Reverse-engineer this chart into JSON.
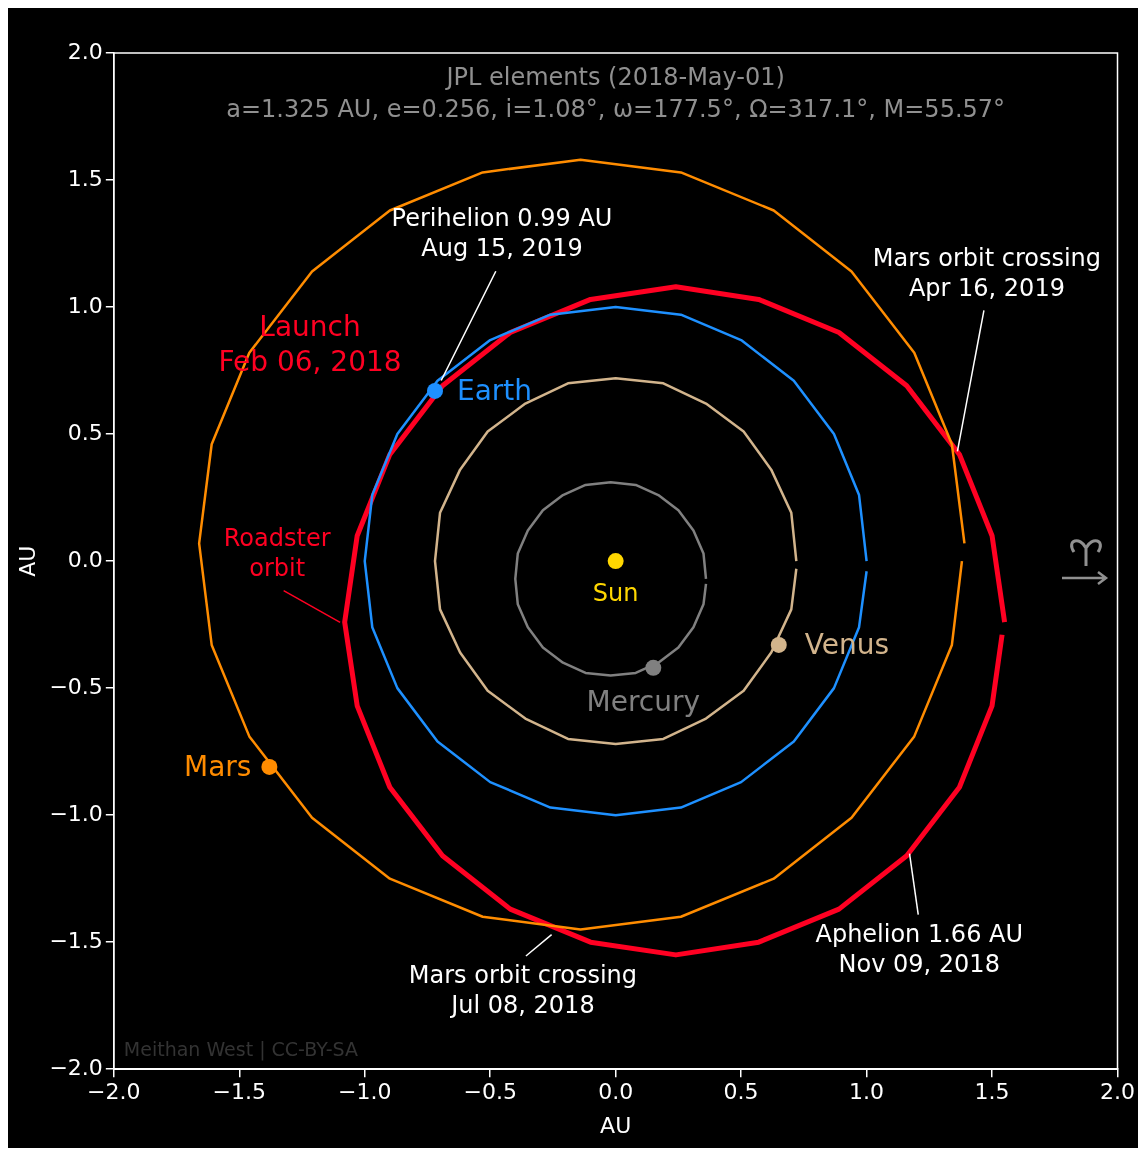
{
  "chart_data": {
    "type": "line",
    "title": "JPL elements (2018-May-01)",
    "subtitle": "a=1.325 AU, e=0.256, i=1.08°, ω=177.5°, Ω=317.1°, M=55.57°",
    "xlabel": "AU",
    "ylabel": "AU",
    "xlim": [
      -2.0,
      2.0
    ],
    "ylim": [
      -2.0,
      2.0
    ],
    "xticks": [
      {
        "value": -2.0,
        "label": "−2.0"
      },
      {
        "value": -1.5,
        "label": "−1.5"
      },
      {
        "value": -1.0,
        "label": "−1.0"
      },
      {
        "value": -0.5,
        "label": "−0.5"
      },
      {
        "value": 0,
        "label": "0.0"
      },
      {
        "value": 0.5,
        "label": "0.5"
      },
      {
        "value": 1.0,
        "label": "1.0"
      },
      {
        "value": 1.5,
        "label": "1.5"
      },
      {
        "value": 2.0,
        "label": "2.0"
      }
    ],
    "yticks": [
      {
        "value": -2.0,
        "label": "−2.0"
      },
      {
        "value": -1.5,
        "label": "−1.5"
      },
      {
        "value": -1.0,
        "label": "−1.0"
      },
      {
        "value": -0.5,
        "label": "−0.5"
      },
      {
        "value": 0,
        "label": "0.0"
      },
      {
        "value": 0.5,
        "label": "0.5"
      },
      {
        "value": 1.0,
        "label": "1.0"
      },
      {
        "value": 1.5,
        "label": "1.5"
      },
      {
        "value": 2.0,
        "label": "2.0"
      }
    ],
    "grid": false,
    "legend": false,
    "series": [
      {
        "marker": "none",
        "color": "#808080",
        "x": [
          0.36,
          0.35,
          0.31,
          0.25,
          0.17,
          0.08,
          -0.02,
          -0.12,
          -0.21,
          -0.29,
          -0.35,
          -0.39,
          -0.4,
          -0.39,
          -0.35,
          -0.29,
          -0.21,
          -0.12,
          -0.02,
          0.08,
          0.17,
          0.25,
          0.31,
          0.35,
          0.36
        ],
        "values": [
          -0.07,
          0.03,
          0.12,
          0.2,
          0.26,
          0.3,
          0.31,
          0.3,
          0.26,
          0.2,
          0.12,
          0.03,
          -0.07,
          -0.17,
          -0.26,
          -0.34,
          -0.4,
          -0.44,
          -0.45,
          -0.44,
          -0.4,
          -0.34,
          -0.26,
          -0.17,
          -0.09
        ]
      },
      {
        "marker": "none",
        "color": "#d2b48c",
        "x": [
          0.72,
          0.7,
          0.62,
          0.51,
          0.36,
          0.19,
          0,
          -0.19,
          -0.36,
          -0.51,
          -0.62,
          -0.7,
          -0.72,
          -0.7,
          -0.62,
          -0.51,
          -0.36,
          -0.19,
          0,
          0.19,
          0.36,
          0.51,
          0.62,
          0.7,
          0.72
        ],
        "values": [
          0,
          0.19,
          0.36,
          0.51,
          0.62,
          0.7,
          0.72,
          0.7,
          0.62,
          0.51,
          0.36,
          0.19,
          0,
          -0.19,
          -0.36,
          -0.51,
          -0.62,
          -0.7,
          -0.72,
          -0.7,
          -0.62,
          -0.51,
          -0.36,
          -0.19,
          -0.03
        ]
      },
      {
        "marker": "none",
        "color": "#1e90ff",
        "x": [
          1,
          0.97,
          0.87,
          0.71,
          0.5,
          0.26,
          0,
          -0.26,
          -0.5,
          -0.71,
          -0.87,
          -0.97,
          -1,
          -0.97,
          -0.87,
          -0.71,
          -0.5,
          -0.26,
          0,
          0.26,
          0.5,
          0.71,
          0.87,
          0.97,
          1
        ],
        "values": [
          0,
          0.26,
          0.5,
          0.71,
          0.87,
          0.97,
          1,
          0.97,
          0.87,
          0.71,
          0.5,
          0.26,
          0,
          -0.26,
          -0.5,
          -0.71,
          -0.87,
          -0.97,
          -1,
          -0.97,
          -0.87,
          -0.71,
          -0.5,
          -0.26,
          -0.04
        ]
      },
      {
        "marker": "none",
        "color": "#ff8c00",
        "x": [
          1.39,
          1.34,
          1.19,
          0.94,
          0.63,
          0.26,
          -0.14,
          -0.53,
          -0.9,
          -1.21,
          -1.46,
          -1.61,
          -1.66,
          -1.61,
          -1.46,
          -1.21,
          -0.9,
          -0.53,
          -0.14,
          0.26,
          0.63,
          0.94,
          1.19,
          1.34,
          1.38
        ],
        "values": [
          0.07,
          0.46,
          0.82,
          1.14,
          1.38,
          1.53,
          1.58,
          1.53,
          1.38,
          1.14,
          0.82,
          0.46,
          0.07,
          -0.33,
          -0.69,
          -1.01,
          -1.25,
          -1.4,
          -1.45,
          -1.4,
          -1.25,
          -1.01,
          -0.69,
          -0.33,
          0.0
        ]
      },
      {
        "marker": "none",
        "color": "#ff0022",
        "x": [
          1.55,
          1.5,
          1.37,
          1.16,
          0.89,
          0.57,
          0.24,
          -0.1,
          -0.42,
          -0.69,
          -0.9,
          -1.03,
          -1.08,
          -1.03,
          -0.9,
          -0.69,
          -0.42,
          -0.1,
          0.24,
          0.57,
          0.89,
          1.16,
          1.37,
          1.5,
          1.54
        ],
        "values": [
          -0.24,
          0.1,
          0.42,
          0.69,
          0.9,
          1.03,
          1.08,
          1.03,
          0.9,
          0.69,
          0.42,
          0.1,
          -0.24,
          -0.57,
          -0.89,
          -1.16,
          -1.37,
          -1.5,
          -1.55,
          -1.5,
          -1.37,
          -1.16,
          -0.89,
          -0.57,
          -0.29
        ]
      },
      {
        "type": "scatter",
        "marker": "circle",
        "name": "Sun",
        "color": "#ffd700",
        "x": [
          0
        ],
        "values": [
          0
        ]
      },
      {
        "type": "scatter",
        "marker": "circle",
        "name": "Mercury",
        "color": "#808080",
        "x": [
          0.15
        ],
        "values": [
          -0.42
        ]
      },
      {
        "type": "scatter",
        "marker": "circle",
        "name": "Venus",
        "color": "#d2b48c",
        "x": [
          0.65
        ],
        "values": [
          -0.33
        ]
      },
      {
        "type": "scatter",
        "marker": "circle",
        "name": "Earth",
        "color": "#1e90ff",
        "x": [
          -0.72
        ],
        "values": [
          0.67
        ]
      },
      {
        "type": "scatter",
        "marker": "circle",
        "name": "Mars",
        "color": "#ff8c00",
        "x": [
          -1.38
        ],
        "values": [
          -0.81
        ]
      }
    ],
    "annotations": [
      {
        "text": "Launch\nFeb 06, 2018",
        "x": -0.72,
        "y": 0.67
      },
      {
        "text": "Perihelion 0.99 AU\nAug 15, 2019",
        "x": -0.7,
        "y": 0.7
      },
      {
        "text": "Mars orbit crossing\nApr 16, 2019",
        "x": 1.36,
        "y": 0.42
      },
      {
        "text": "Roadster\norbit",
        "x": -1.09,
        "y": -0.25
      },
      {
        "text": "Aphelion 1.66 AU\nNov 09, 2018",
        "x": 1.17,
        "y": -1.14
      },
      {
        "text": "Mars orbit crossing\nJul 08, 2018",
        "x": -0.25,
        "y": -1.46
      },
      "Meithan West | CC-BY-SA"
    ]
  }
}
